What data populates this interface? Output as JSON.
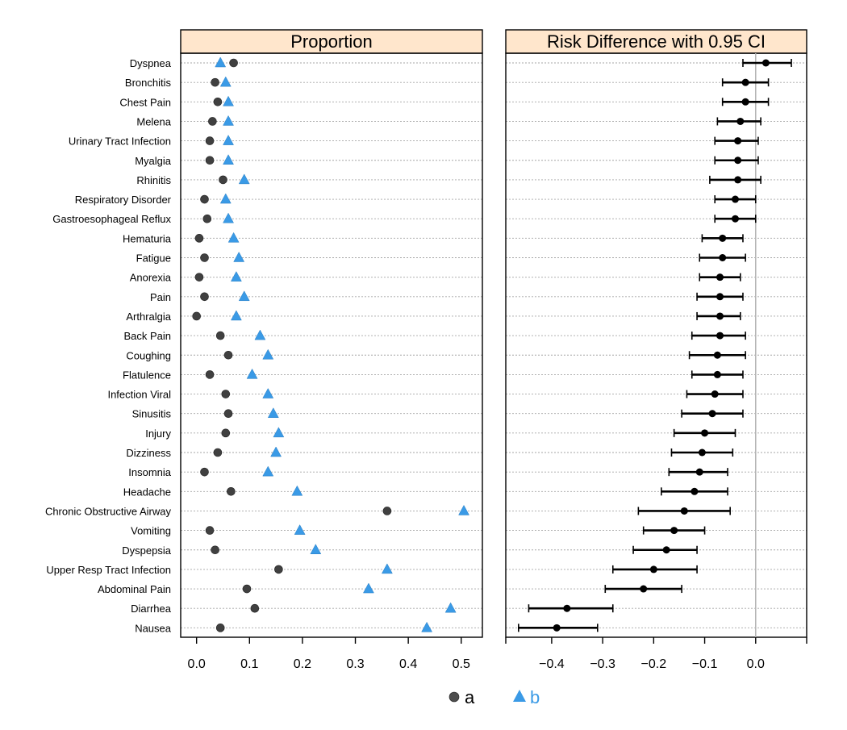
{
  "chart_data": [
    {
      "type": "scatter",
      "title": "Proportion",
      "categories": [
        "Dyspnea",
        "Bronchitis",
        "Chest Pain",
        "Melena",
        "Urinary Tract Infection",
        "Myalgia",
        "Rhinitis",
        "Respiratory Disorder",
        "Gastroesophageal Reflux",
        "Hematuria",
        "Fatigue",
        "Anorexia",
        "Pain",
        "Arthralgia",
        "Back Pain",
        "Coughing",
        "Flatulence",
        "Infection Viral",
        "Sinusitis",
        "Injury",
        "Dizziness",
        "Insomnia",
        "Headache",
        "Chronic Obstructive Airway",
        "Vomiting",
        "Dyspepsia",
        "Upper Resp Tract Infection",
        "Abdominal Pain",
        "Diarrhea",
        "Nausea"
      ],
      "series": [
        {
          "name": "a",
          "values": [
            0.07,
            0.035,
            0.04,
            0.03,
            0.025,
            0.025,
            0.05,
            0.015,
            0.02,
            0.005,
            0.015,
            0.005,
            0.015,
            0.0,
            0.045,
            0.06,
            0.025,
            0.055,
            0.06,
            0.055,
            0.04,
            0.015,
            0.065,
            0.36,
            0.025,
            0.035,
            0.155,
            0.095,
            0.11,
            0.045
          ]
        },
        {
          "name": "b",
          "values": [
            0.045,
            0.055,
            0.06,
            0.06,
            0.06,
            0.06,
            0.09,
            0.055,
            0.06,
            0.07,
            0.08,
            0.075,
            0.09,
            0.075,
            0.12,
            0.135,
            0.105,
            0.135,
            0.145,
            0.155,
            0.15,
            0.135,
            0.19,
            0.505,
            0.195,
            0.225,
            0.36,
            0.325,
            0.48,
            0.435
          ]
        }
      ],
      "xlim": [
        -0.03,
        0.54
      ],
      "xticks": [
        "0.0",
        "0.1",
        "0.2",
        "0.3",
        "0.4",
        "0.5"
      ],
      "xtick_values": [
        0.0,
        0.1,
        0.2,
        0.3,
        0.4,
        0.5
      ],
      "grid": "dotted horizontal",
      "legend": "bottom"
    },
    {
      "type": "scatter",
      "title": "Risk Difference with 0.95 CI",
      "categories": [
        "Dyspnea",
        "Bronchitis",
        "Chest Pain",
        "Melena",
        "Urinary Tract Infection",
        "Myalgia",
        "Rhinitis",
        "Respiratory Disorder",
        "Gastroesophageal Reflux",
        "Hematuria",
        "Fatigue",
        "Anorexia",
        "Pain",
        "Arthralgia",
        "Back Pain",
        "Coughing",
        "Flatulence",
        "Infection Viral",
        "Sinusitis",
        "Injury",
        "Dizziness",
        "Insomnia",
        "Headache",
        "Chronic Obstructive Airway",
        "Vomiting",
        "Dyspepsia",
        "Upper Resp Tract Infection",
        "Abdominal Pain",
        "Diarrhea",
        "Nausea"
      ],
      "estimate": [
        0.02,
        -0.02,
        -0.02,
        -0.03,
        -0.035,
        -0.035,
        -0.035,
        -0.04,
        -0.04,
        -0.065,
        -0.065,
        -0.07,
        -0.07,
        -0.07,
        -0.07,
        -0.075,
        -0.075,
        -0.08,
        -0.085,
        -0.1,
        -0.105,
        -0.11,
        -0.12,
        -0.14,
        -0.16,
        -0.175,
        -0.2,
        -0.22,
        -0.37,
        -0.39
      ],
      "ci_lower": [
        -0.025,
        -0.065,
        -0.065,
        -0.075,
        -0.08,
        -0.08,
        -0.09,
        -0.08,
        -0.08,
        -0.105,
        -0.11,
        -0.11,
        -0.115,
        -0.115,
        -0.125,
        -0.13,
        -0.125,
        -0.135,
        -0.145,
        -0.16,
        -0.165,
        -0.17,
        -0.185,
        -0.23,
        -0.22,
        -0.24,
        -0.28,
        -0.295,
        -0.445,
        -0.465
      ],
      "ci_upper": [
        0.07,
        0.025,
        0.025,
        0.01,
        0.005,
        0.005,
        0.01,
        0.0,
        0.0,
        -0.025,
        -0.02,
        -0.03,
        -0.025,
        -0.03,
        -0.02,
        -0.02,
        -0.025,
        -0.025,
        -0.025,
        -0.04,
        -0.045,
        -0.055,
        -0.055,
        -0.05,
        -0.1,
        -0.115,
        -0.115,
        -0.145,
        -0.28,
        -0.31
      ],
      "xlim": [
        -0.49,
        0.1
      ],
      "xticks": [
        "−0.4",
        "−0.3",
        "−0.2",
        "−0.1",
        "0.0"
      ],
      "xtick_values": [
        -0.4,
        -0.3,
        -0.2,
        -0.1,
        0.0
      ],
      "reference_line": 0.0,
      "grid": "dotted horizontal"
    }
  ],
  "legend": [
    {
      "label": "a",
      "color": "#4d4d4d",
      "shape": "circle"
    },
    {
      "label": "b",
      "color": "#3a9ae6",
      "shape": "triangle"
    }
  ],
  "colors": {
    "header_bg": "#ffe6cc",
    "series_a": "#404040",
    "series_b": "#3a9ae6",
    "ci": "#000000",
    "ref_line": "#b3b3b3",
    "grid": "#a6a6a6"
  }
}
